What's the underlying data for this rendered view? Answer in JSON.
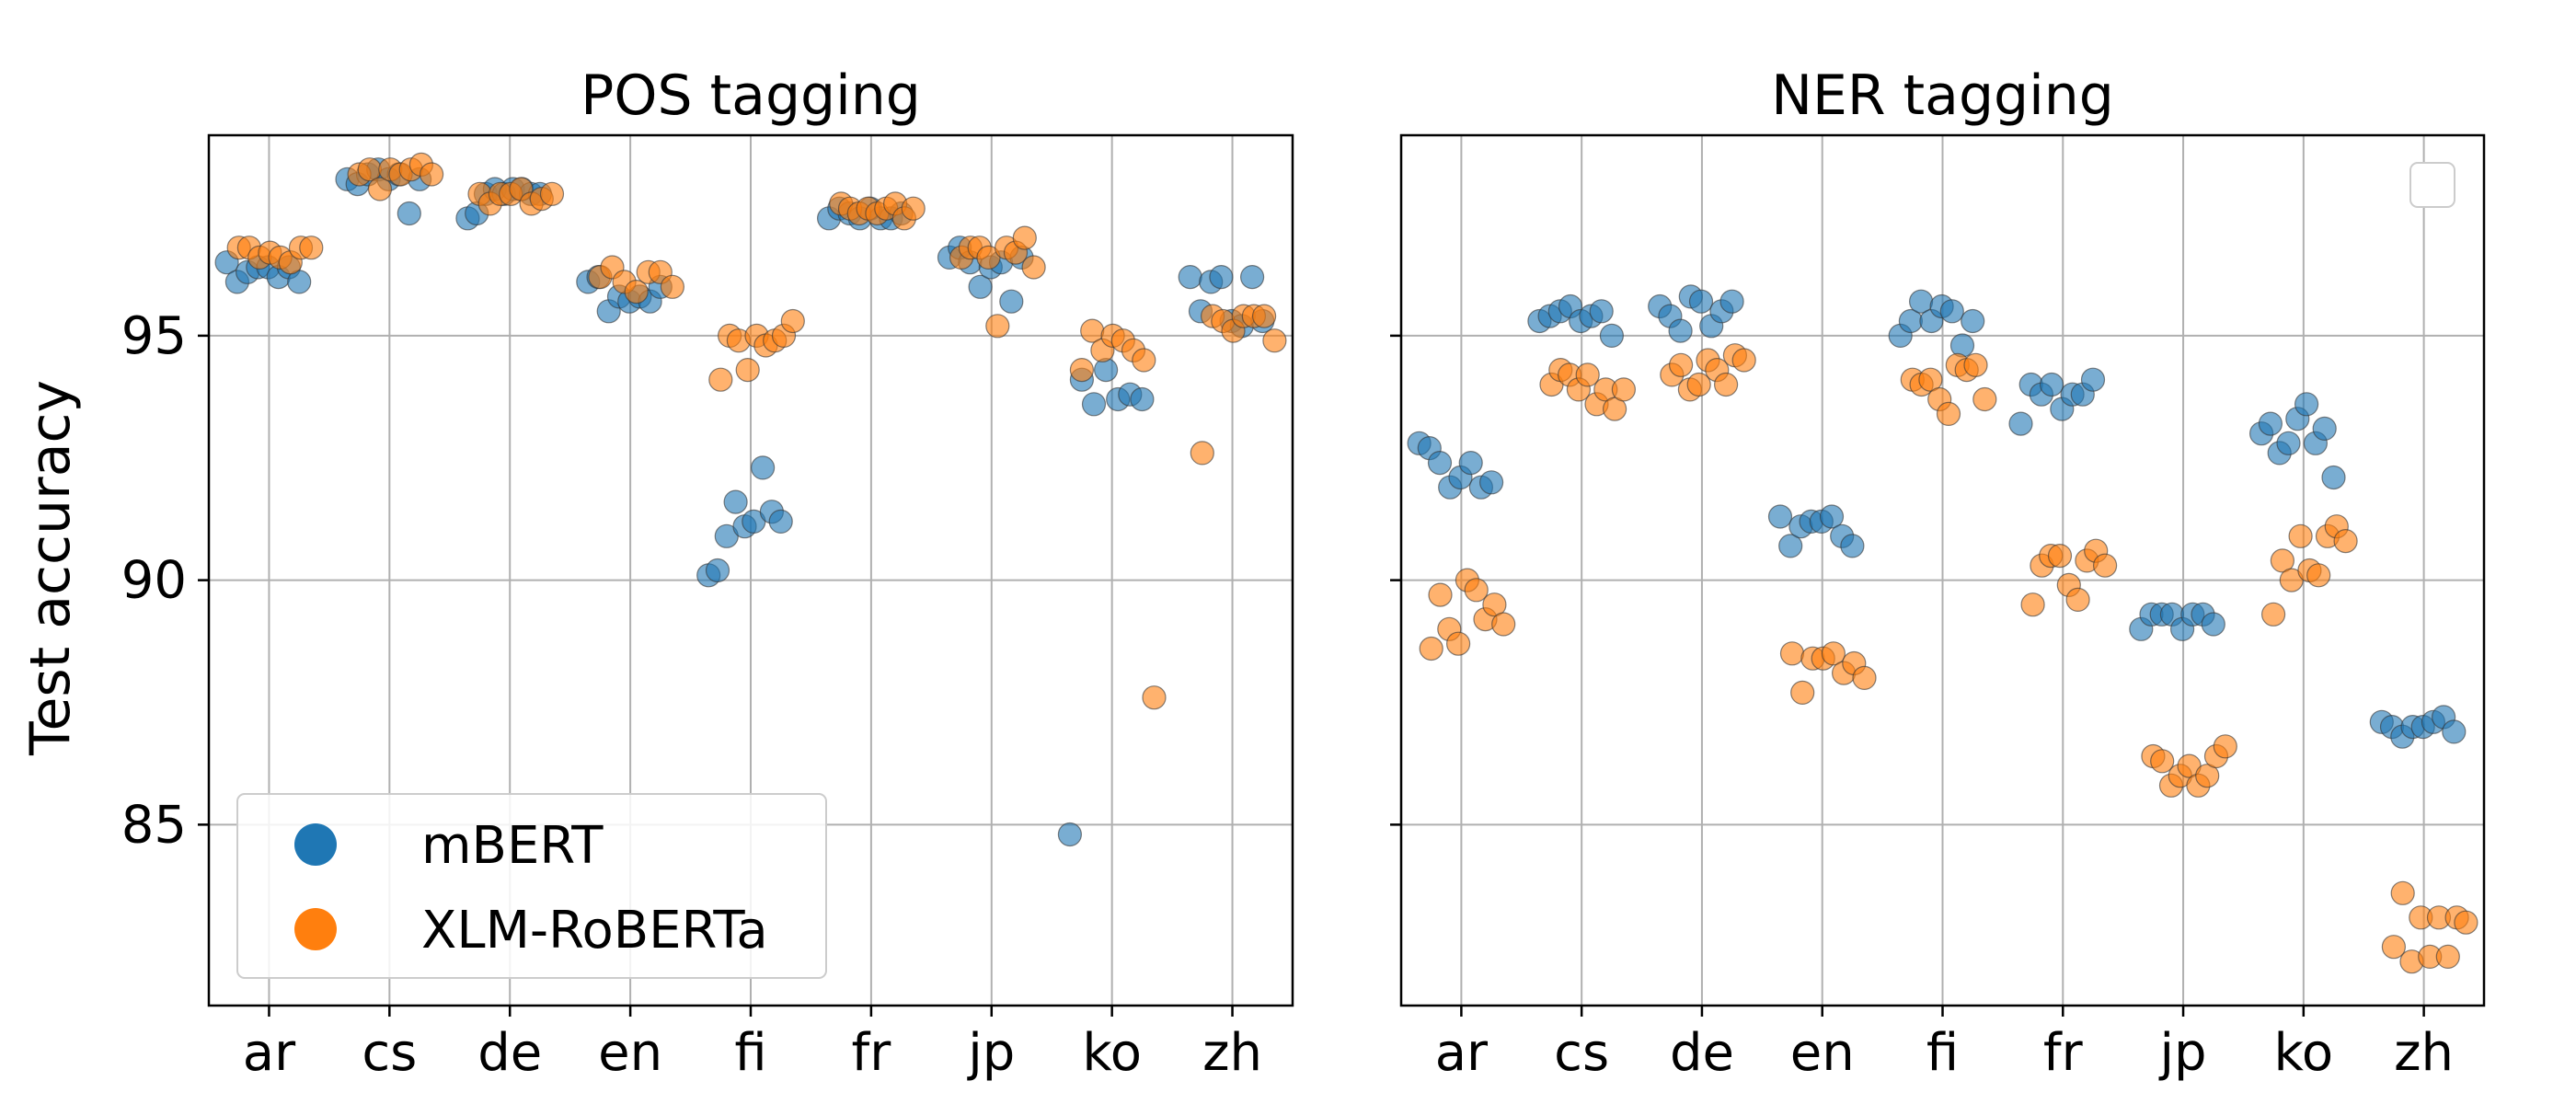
{
  "figure": {
    "ylabel": "Test accuracy"
  },
  "colors": {
    "mbert": "#1f77b4",
    "xlmr": "#ff7f0e",
    "grid": "#b0b0b0"
  },
  "chart_data": [
    {
      "type": "scatter",
      "title": "POS tagging",
      "xlabel": "",
      "ylabel": "Test accuracy",
      "categories": [
        "ar",
        "cs",
        "de",
        "en",
        "fi",
        "fr",
        "jp",
        "ko",
        "zh"
      ],
      "ylim": [
        81.3,
        99.1
      ],
      "yticks": [
        85,
        90,
        95
      ],
      "grid": true,
      "legend": {
        "placement": "lower-left",
        "entries": [
          "mBERT",
          "XLM-RoBERTa"
        ]
      },
      "series": [
        {
          "name": "mBERT",
          "color": "#1f77b4",
          "values": [
            [
              96.5,
              96.1,
              96.3,
              96.4,
              96.4,
              96.2,
              96.4,
              96.1
            ],
            [
              98.2,
              98.1,
              98.3,
              98.4,
              98.2,
              98.3,
              97.5,
              98.2
            ],
            [
              97.4,
              97.5,
              97.9,
              98.0,
              97.9,
              98.0,
              98.0,
              97.9,
              97.9
            ],
            [
              96.1,
              96.2,
              95.5,
              95.8,
              95.7,
              95.8,
              95.7,
              96.0
            ],
            [
              90.1,
              90.2,
              90.9,
              91.6,
              91.1,
              91.2,
              92.3,
              91.4,
              91.2
            ],
            [
              97.4,
              97.6,
              97.5,
              97.4,
              97.6,
              97.4,
              97.4,
              97.5
            ],
            [
              96.6,
              96.8,
              96.5,
              96.0,
              96.4,
              96.5,
              95.7,
              96.6
            ],
            [
              84.8,
              94.1,
              93.6,
              94.3,
              93.7,
              93.8,
              93.7
            ],
            [
              96.2,
              95.5,
              96.1,
              96.2,
              95.3,
              95.2,
              96.2,
              95.3
            ]
          ]
        },
        {
          "name": "XLM-RoBERTa",
          "color": "#ff7f0e",
          "values": [
            [
              96.8,
              96.8,
              96.6,
              96.7,
              96.6,
              96.5,
              96.8,
              96.8
            ],
            [
              98.3,
              98.4,
              98.0,
              98.4,
              98.3,
              98.4,
              98.5,
              98.3
            ],
            [
              97.9,
              97.7,
              97.9,
              97.9,
              98.0,
              97.7,
              97.8,
              97.9
            ],
            [
              96.2,
              96.4,
              96.1,
              95.9,
              96.3,
              96.3,
              96.0
            ],
            [
              94.1,
              95.0,
              94.9,
              94.3,
              95.0,
              94.8,
              94.9,
              95.0,
              95.3
            ],
            [
              97.7,
              97.6,
              97.5,
              97.6,
              97.5,
              97.6,
              97.7,
              97.4,
              97.6
            ],
            [
              96.6,
              96.8,
              96.8,
              96.6,
              95.2,
              96.8,
              96.7,
              97.0,
              96.4
            ],
            [
              94.3,
              95.1,
              94.7,
              95.0,
              94.9,
              94.7,
              94.5,
              87.6
            ],
            [
              92.6,
              95.4,
              95.3,
              95.1,
              95.4,
              95.4,
              95.4,
              94.9
            ]
          ]
        }
      ]
    },
    {
      "type": "scatter",
      "title": "NER tagging",
      "xlabel": "",
      "ylabel": "",
      "categories": [
        "ar",
        "cs",
        "de",
        "en",
        "fi",
        "fr",
        "jp",
        "ko",
        "zh"
      ],
      "ylim": [
        81.3,
        99.1
      ],
      "yticks": [
        85,
        90,
        95
      ],
      "grid": true,
      "legend": {
        "placement": "top-right",
        "entries": []
      },
      "series": [
        {
          "name": "mBERT",
          "color": "#1f77b4",
          "values": [
            [
              92.8,
              92.7,
              92.4,
              91.9,
              92.1,
              92.4,
              91.9,
              92.0
            ],
            [
              95.3,
              95.4,
              95.5,
              95.6,
              95.3,
              95.4,
              95.5,
              95.0
            ],
            [
              95.6,
              95.4,
              95.1,
              95.8,
              95.7,
              95.2,
              95.5,
              95.7
            ],
            [
              91.3,
              90.7,
              91.1,
              91.2,
              91.2,
              91.3,
              90.9,
              90.7
            ],
            [
              95.0,
              95.3,
              95.7,
              95.3,
              95.6,
              95.5,
              94.8,
              95.3
            ],
            [
              93.2,
              94.0,
              93.8,
              94.0,
              93.5,
              93.8,
              93.8,
              94.1
            ],
            [
              89.0,
              89.3,
              89.3,
              89.3,
              89.0,
              89.3,
              89.3,
              89.1
            ],
            [
              93.0,
              93.2,
              92.6,
              92.8,
              93.3,
              93.6,
              92.8,
              93.1,
              92.1
            ],
            [
              87.1,
              87.0,
              86.8,
              87.0,
              87.0,
              87.1,
              87.2,
              86.9
            ]
          ]
        },
        {
          "name": "XLM-RoBERTa",
          "color": "#ff7f0e",
          "values": [
            [
              88.6,
              89.7,
              89.0,
              88.7,
              90.0,
              89.8,
              89.2,
              89.5,
              89.1
            ],
            [
              94.0,
              94.3,
              94.2,
              93.9,
              94.2,
              93.6,
              93.9,
              93.5,
              93.9
            ],
            [
              94.2,
              94.4,
              93.9,
              94.0,
              94.5,
              94.3,
              94.0,
              94.6,
              94.5
            ],
            [
              88.5,
              87.7,
              88.4,
              88.4,
              88.5,
              88.1,
              88.3,
              88.0
            ],
            [
              94.1,
              94.0,
              94.1,
              93.7,
              93.4,
              94.4,
              94.3,
              94.4,
              93.7
            ],
            [
              89.5,
              90.3,
              90.5,
              90.5,
              89.9,
              89.6,
              90.4,
              90.6,
              90.3
            ],
            [
              86.4,
              86.3,
              85.8,
              86.0,
              86.2,
              85.8,
              86.0,
              86.4,
              86.6
            ],
            [
              89.3,
              90.4,
              90.0,
              90.9,
              90.2,
              90.1,
              90.9,
              91.1,
              90.8
            ],
            [
              82.5,
              83.6,
              82.2,
              83.1,
              82.3,
              83.1,
              82.3,
              83.1,
              83.0
            ]
          ]
        }
      ]
    }
  ]
}
